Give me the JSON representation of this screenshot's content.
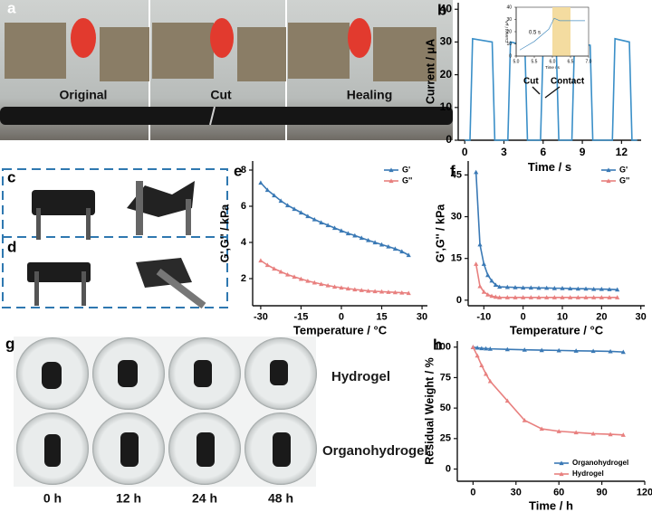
{
  "photos": {
    "a": {
      "label": "a",
      "captions": [
        "Original",
        "Cut",
        "Healing"
      ]
    },
    "c": {
      "label": "c"
    },
    "d": {
      "label": "d"
    },
    "g": {
      "label": "g",
      "rows": [
        "Hydrogel",
        "Organohydrogel"
      ],
      "columns": [
        "0 h",
        "12 h",
        "24 h",
        "48 h"
      ]
    }
  },
  "chart_data": [
    {
      "type": "line",
      "panel": "b",
      "xlabel": "Time / s",
      "ylabel": "Current / μA",
      "color": "#3a8fc8",
      "x": [
        0,
        0.4,
        0.6,
        2.1,
        2.3,
        3.3,
        3.5,
        4.6,
        4.8,
        5.8,
        6.0,
        7.0,
        7.2,
        8.2,
        8.4,
        9.6,
        9.8,
        11.3,
        11.5,
        12.6,
        12.8,
        13.2
      ],
      "values": [
        0,
        0,
        31,
        30,
        0,
        0,
        30,
        29,
        0,
        0,
        29,
        29,
        0,
        0,
        30,
        29,
        0,
        0,
        31,
        30,
        0,
        0
      ],
      "xlim": [
        -0.5,
        13.5
      ],
      "ylim": [
        0,
        42
      ],
      "xticks": [
        0,
        3,
        6,
        9,
        12
      ],
      "yticks": [
        0,
        10,
        20,
        30,
        40
      ],
      "annotations": [
        "Cut",
        "Contact"
      ]
    },
    {
      "type": "line",
      "xlabel": "Time / s",
      "ylabel": "Current / μA",
      "color": "#4a8fc0",
      "frame": true,
      "x": [
        5.1,
        5.5,
        5.9,
        6.05,
        6.2,
        6.9
      ],
      "values": [
        5,
        12,
        22,
        31,
        29,
        29
      ],
      "xlim": [
        5.0,
        7.0
      ],
      "ylim": [
        0,
        40
      ],
      "xticks": [
        {
          "value": 5,
          "label": "5.0"
        },
        5.5,
        {
          "value": 6,
          "label": "6.0"
        },
        6.5,
        {
          "value": 7,
          "label": "7.0"
        }
      ],
      "yticks": [
        0,
        10,
        20,
        30,
        40
      ],
      "highlight": [
        6.0,
        6.5
      ],
      "annotations": [
        "0.5 s"
      ]
    },
    {
      "type": "line",
      "panel": "e",
      "xlabel": "Temperature / °C",
      "ylabel": "G',G'' / kPa",
      "markers": true,
      "legend": "upper right",
      "x": [
        -30,
        -27.5,
        -25,
        -22.5,
        -20,
        -17.5,
        -15,
        -12.5,
        -10,
        -7.5,
        -5,
        -2.5,
        0,
        2.5,
        5,
        7.5,
        10,
        12.5,
        15,
        17.5,
        20,
        22.5,
        25
      ],
      "series": [
        {
          "name": "G'",
          "color": "#3a79b5",
          "values": [
            7.3,
            6.9,
            6.6,
            6.3,
            6.05,
            5.85,
            5.65,
            5.45,
            5.27,
            5.1,
            4.95,
            4.8,
            4.65,
            4.5,
            4.38,
            4.25,
            4.12,
            4.0,
            3.88,
            3.77,
            3.65,
            3.5,
            3.3
          ]
        },
        {
          "name": "G''",
          "color": "#e8807f",
          "values": [
            3.0,
            2.75,
            2.55,
            2.38,
            2.22,
            2.1,
            1.98,
            1.87,
            1.78,
            1.7,
            1.62,
            1.55,
            1.5,
            1.45,
            1.4,
            1.36,
            1.32,
            1.3,
            1.28,
            1.26,
            1.24,
            1.22,
            1.2
          ]
        }
      ],
      "xlim": [
        -33,
        32
      ],
      "ylim": [
        0.5,
        8.5
      ],
      "xticks": [
        -30,
        -15,
        0,
        15,
        30
      ],
      "yticks": [
        2,
        4,
        6,
        8
      ]
    },
    {
      "type": "line",
      "panel": "f",
      "xlabel": "Temperature / °C",
      "ylabel": "G',G'' / kPa",
      "markers": true,
      "legend": "upper right",
      "x": [
        -12,
        -11,
        -10,
        -9,
        -8,
        -7,
        -6,
        -4,
        -2,
        0,
        2,
        4,
        6,
        8,
        10,
        12,
        14,
        16,
        18,
        20,
        22,
        24
      ],
      "series": [
        {
          "name": "G'",
          "color": "#3a79b5",
          "values": [
            46,
            20,
            13,
            9,
            7,
            5.5,
            4.8,
            4.7,
            4.6,
            4.5,
            4.5,
            4.4,
            4.4,
            4.3,
            4.3,
            4.2,
            4.1,
            4.1,
            4.0,
            4.0,
            3.9,
            3.8
          ]
        },
        {
          "name": "G''",
          "color": "#e8807f",
          "values": [
            13,
            5,
            3,
            2,
            1.5,
            1.2,
            1,
            1,
            1,
            1,
            1,
            1,
            1,
            1,
            1,
            1,
            1,
            1,
            1,
            1,
            1,
            1
          ]
        }
      ],
      "xlim": [
        -14,
        31
      ],
      "ylim": [
        -2,
        50
      ],
      "xticks": [
        -10,
        0,
        10,
        20,
        30
      ],
      "yticks": [
        0,
        15,
        30,
        45
      ]
    },
    {
      "type": "line",
      "panel": "h",
      "xlabel": "Time / h",
      "ylabel": "Residual Weight / %",
      "markers": true,
      "legend": "lower right",
      "x": [
        0,
        3,
        6,
        9,
        12,
        24,
        36,
        48,
        60,
        72,
        84,
        96,
        105
      ],
      "series": [
        {
          "name": "Organohydrogel",
          "color": "#3a79b5",
          "values": [
            100,
            99.5,
            99,
            98.8,
            98.6,
            98.2,
            97.8,
            97.5,
            97.3,
            97,
            96.8,
            96.5,
            96
          ]
        },
        {
          "name": "Hydrogel",
          "color": "#e8807f",
          "values": [
            100,
            93,
            85,
            78,
            72,
            56,
            40,
            33,
            31,
            30,
            29,
            28.5,
            28
          ]
        }
      ],
      "xlim": [
        -11,
        120
      ],
      "ylim": [
        -10,
        105
      ],
      "xticks": [
        0,
        30,
        60,
        90,
        120
      ],
      "yticks": [
        0,
        25,
        50,
        75,
        100
      ]
    }
  ]
}
